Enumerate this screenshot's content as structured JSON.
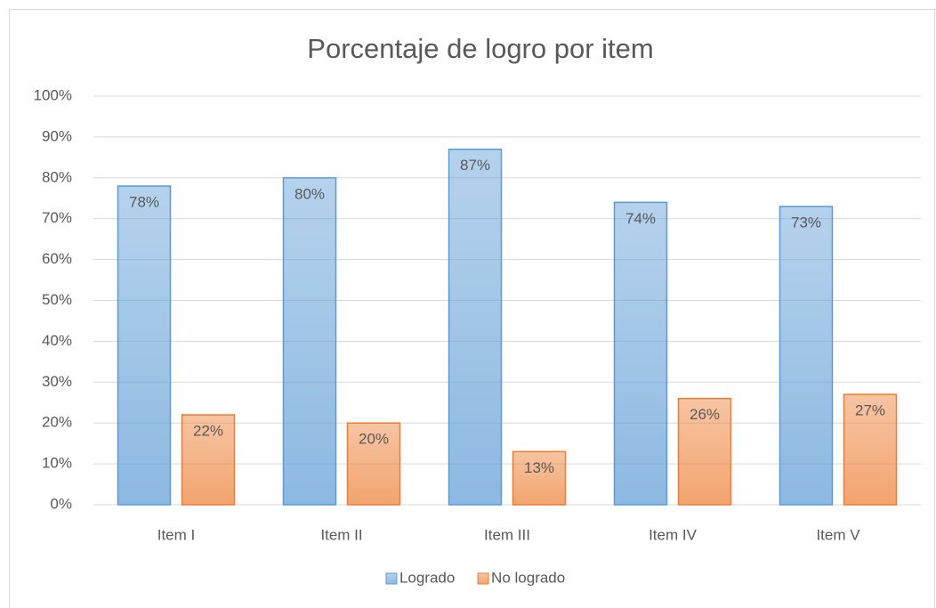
{
  "chart_data": {
    "type": "bar",
    "title": "Porcentaje de logro por item",
    "categories": [
      "Item I",
      "Item II",
      "Item III",
      "Item IV",
      "Item V"
    ],
    "series": [
      {
        "name": "Logrado",
        "color": "#5b9bd5",
        "values": [
          78,
          80,
          87,
          74,
          73
        ],
        "value_labels": [
          "78%",
          "80%",
          "87%",
          "74%",
          "73%"
        ]
      },
      {
        "name": "No logrado",
        "color": "#ed7d31",
        "values": [
          22,
          20,
          13,
          26,
          27
        ],
        "value_labels": [
          "22%",
          "20%",
          "13%",
          "26%",
          "27%"
        ]
      }
    ],
    "ylim": [
      0,
      100
    ],
    "yticks": [
      {
        "value": 0,
        "label": "0%"
      },
      {
        "value": 10,
        "label": "10%"
      },
      {
        "value": 20,
        "label": "20%"
      },
      {
        "value": 30,
        "label": "30%"
      },
      {
        "value": 40,
        "label": "40%"
      },
      {
        "value": 50,
        "label": "50%"
      },
      {
        "value": 60,
        "label": "60%"
      },
      {
        "value": 70,
        "label": "70%"
      },
      {
        "value": 80,
        "label": "80%"
      },
      {
        "value": 90,
        "label": "90%"
      },
      {
        "value": 100,
        "label": "100%"
      }
    ],
    "grid": true,
    "legend": "bottom"
  }
}
